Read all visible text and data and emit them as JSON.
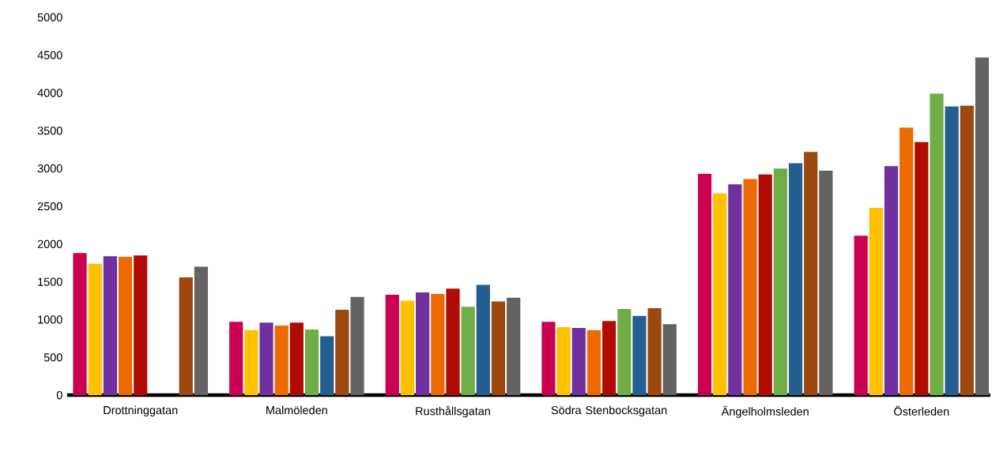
{
  "chart_data": {
    "type": "bar",
    "categories": [
      "Drottninggatan",
      "Malmöleden",
      "Rusthållsgatan",
      "Södra Stenbocksgatan",
      "Ängelholmsleden",
      "Österleden"
    ],
    "series": [
      {
        "color": "#cc0052",
        "values": [
          1880,
          970,
          1330,
          970,
          2930,
          2110
        ]
      },
      {
        "color": "#ffc000",
        "values": [
          1740,
          860,
          1250,
          900,
          2670,
          2480
        ]
      },
      {
        "color": "#7030a0",
        "values": [
          1840,
          960,
          1360,
          890,
          2790,
          3030
        ]
      },
      {
        "color": "#ed6a00",
        "values": [
          1830,
          920,
          1340,
          860,
          2860,
          3540
        ]
      },
      {
        "color": "#b00b05",
        "values": [
          1850,
          960,
          1410,
          980,
          2920,
          3350
        ]
      },
      {
        "color": "#70ad47",
        "values": [
          null,
          870,
          1170,
          1140,
          3000,
          3990
        ]
      },
      {
        "color": "#255e91",
        "values": [
          null,
          780,
          1460,
          1050,
          3070,
          3820
        ]
      },
      {
        "color": "#9c480f",
        "values": [
          1560,
          1130,
          1240,
          1150,
          3220,
          3830
        ]
      },
      {
        "color": "#636363",
        "values": [
          1700,
          1300,
          1290,
          940,
          2970,
          4470
        ]
      }
    ],
    "ylim": [
      0,
      5000
    ],
    "yticks": [
      0,
      500,
      1000,
      1500,
      2000,
      2500,
      3000,
      3500,
      4000,
      4500,
      5000
    ]
  }
}
